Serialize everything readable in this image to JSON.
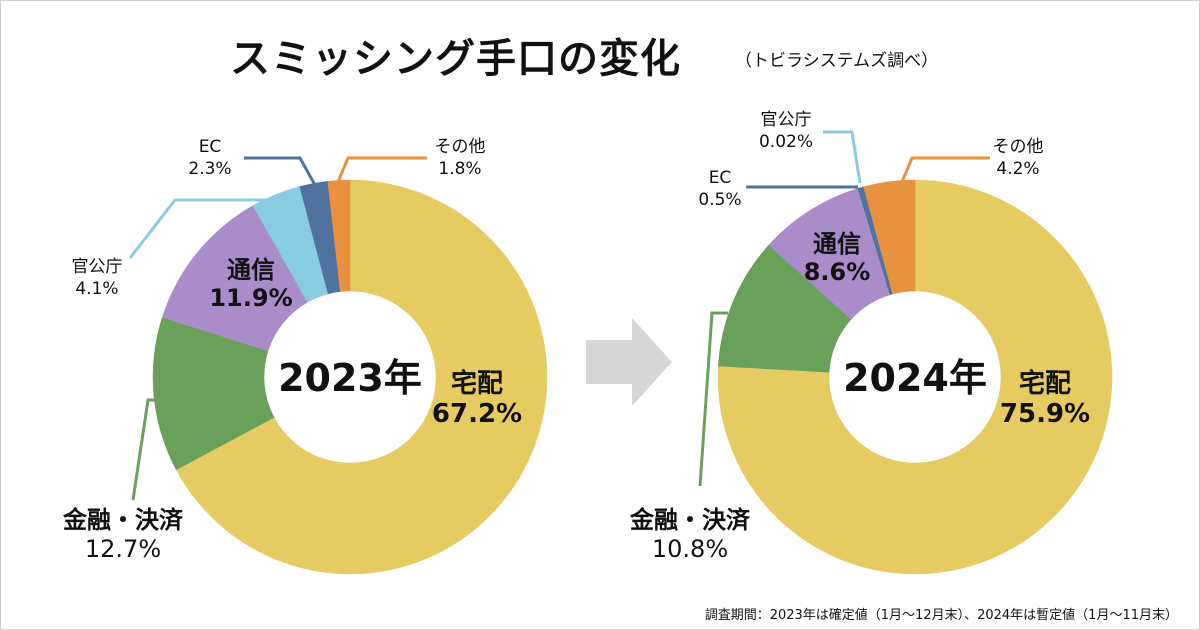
{
  "header": {
    "title": "スミッシング手口の変化",
    "subtitle": "（トビラシステムズ調べ）"
  },
  "footnote": "調査期間：2023年は確定値（1月～12月末）、2024年は暫定値（1月～11月末）",
  "arrow": {
    "icon": "right-arrow-icon",
    "color": "#d6d6d6"
  },
  "colors": {
    "宅配": "#e6ca62",
    "金融・決済": "#6aa15a",
    "通信": "#a98cc9",
    "官公庁": "#88cce4",
    "EC": "#50729f",
    "その他": "#e8913f"
  },
  "chart_data": [
    {
      "type": "pie",
      "variant": "donut",
      "center_label": "2023年",
      "categories": [
        "宅配",
        "金融・決済",
        "通信",
        "官公庁",
        "EC",
        "その他"
      ],
      "values": [
        67.2,
        12.7,
        11.9,
        4.1,
        2.3,
        1.8
      ],
      "value_labels": [
        "67.2%",
        "12.7%",
        "11.9%",
        "4.1%",
        "2.3%",
        "1.8%"
      ],
      "unit": "%"
    },
    {
      "type": "pie",
      "variant": "donut",
      "center_label": "2024年",
      "categories": [
        "宅配",
        "金融・決済",
        "通信",
        "官公庁",
        "EC",
        "その他"
      ],
      "values": [
        75.9,
        10.8,
        8.6,
        0.02,
        0.5,
        4.2
      ],
      "value_labels": [
        "75.9%",
        "10.8%",
        "8.6%",
        "0.02%",
        "0.5%",
        "4.2%"
      ],
      "unit": "%"
    }
  ]
}
